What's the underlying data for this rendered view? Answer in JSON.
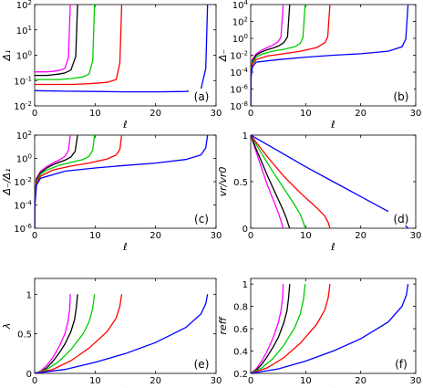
{
  "figure": {
    "colors": {
      "magenta": "#ff00ff",
      "black": "#000000",
      "green": "#00cc00",
      "red": "#ff0000",
      "blue": "#0000ff"
    }
  },
  "chart_data": [
    {
      "panel": "(a)",
      "type": "line",
      "yscale": "log",
      "xlabel": "ℓ",
      "ylabel": "Δ₁",
      "xlim": [
        0,
        30
      ],
      "ylim": [
        0.01,
        100
      ],
      "xticks": [
        "0",
        "10",
        "20",
        "30"
      ],
      "yticks": [
        {
          "v": 0.01,
          "t": "10-2"
        },
        {
          "v": 0.1,
          "t": "10-1"
        },
        {
          "v": 1,
          "t": "100"
        },
        {
          "v": 10,
          "t": "101"
        },
        {
          "v": 100,
          "t": "102"
        }
      ],
      "series": [
        {
          "color": "#ff00ff",
          "x": [
            0,
            1,
            2,
            3,
            4,
            5,
            5.6,
            5.9
          ],
          "y": [
            0.22,
            0.22,
            0.22,
            0.23,
            0.25,
            0.3,
            0.8,
            100
          ]
        },
        {
          "color": "#000000",
          "x": [
            0,
            1,
            2,
            3,
            4,
            5,
            6,
            6.8,
            7.1
          ],
          "y": [
            0.16,
            0.16,
            0.16,
            0.17,
            0.18,
            0.2,
            0.26,
            0.9,
            100
          ]
        },
        {
          "color": "#00cc00",
          "x": [
            0,
            2,
            4,
            6,
            8,
            9,
            9.6,
            9.9
          ],
          "y": [
            0.11,
            0.11,
            0.11,
            0.12,
            0.14,
            0.18,
            0.6,
            100
          ]
        },
        {
          "color": "#ff0000",
          "x": [
            0,
            3,
            6,
            9,
            12,
            13.5,
            14.1,
            14.4
          ],
          "y": [
            0.07,
            0.07,
            0.07,
            0.075,
            0.085,
            0.11,
            0.5,
            100
          ]
        },
        {
          "color": "#0000ff",
          "x": [
            0,
            5,
            10,
            15,
            20,
            25,
            27.5,
            28.3,
            28.6
          ],
          "y": [
            0.04,
            0.038,
            0.037,
            0.036,
            0.036,
            0.037,
            0.045,
            0.3,
            100
          ]
        }
      ]
    },
    {
      "panel": "(b)",
      "type": "line",
      "yscale": "log",
      "xlabel": "ℓ",
      "ylabel": "Δ₋",
      "xlim": [
        0,
        30
      ],
      "ylim": [
        1e-08,
        10000.0
      ],
      "xticks": [
        "0",
        "10",
        "20",
        "30"
      ],
      "yticks": [
        {
          "v": 1e-08,
          "t": "10-8"
        },
        {
          "v": 1e-06,
          "t": "10-6"
        },
        {
          "v": 0.0001,
          "t": "10-4"
        },
        {
          "v": 0.01,
          "t": "10-2"
        },
        {
          "v": 1,
          "t": "100"
        },
        {
          "v": 100,
          "t": "102"
        },
        {
          "v": 10000,
          "t": "104"
        }
      ],
      "series": [
        {
          "color": "#ff00ff",
          "x": [
            0,
            0.05,
            0.3,
            1,
            2,
            3,
            4,
            5,
            5.5,
            5.9
          ],
          "y": [
            1e-08,
            0.0001,
            0.003,
            0.015,
            0.04,
            0.08,
            0.15,
            0.4,
            1.5,
            10000
          ]
        },
        {
          "color": "#000000",
          "x": [
            0,
            0.05,
            0.3,
            1,
            2,
            3,
            4,
            5,
            6,
            6.7,
            7.1
          ],
          "y": [
            1e-08,
            8e-05,
            0.002,
            0.01,
            0.025,
            0.045,
            0.07,
            0.12,
            0.3,
            1.5,
            10000
          ]
        },
        {
          "color": "#00cc00",
          "x": [
            0,
            0.05,
            0.3,
            1,
            2,
            4,
            6,
            8,
            9,
            9.5,
            9.9
          ],
          "y": [
            1e-08,
            5e-05,
            0.0012,
            0.006,
            0.013,
            0.03,
            0.05,
            0.1,
            0.25,
            1.2,
            10000
          ]
        },
        {
          "color": "#ff0000",
          "x": [
            0,
            0.05,
            0.3,
            1,
            3,
            6,
            9,
            12,
            13.5,
            14,
            14.4
          ],
          "y": [
            1e-08,
            3e-05,
            0.0008,
            0.003,
            0.008,
            0.015,
            0.03,
            0.08,
            0.3,
            1.5,
            10000
          ]
        },
        {
          "color": "#0000ff",
          "x": [
            0,
            0.05,
            0.3,
            1,
            5,
            10,
            15,
            20,
            25,
            27.5,
            28.2,
            28.6
          ],
          "y": [
            1e-08,
            2e-05,
            0.0004,
            0.0015,
            0.003,
            0.006,
            0.01,
            0.015,
            0.03,
            0.1,
            0.8,
            10000
          ]
        }
      ]
    },
    {
      "panel": "(c)",
      "type": "line",
      "yscale": "log",
      "xlabel": "ℓ",
      "ylabel": "Δ₋/Δ₁",
      "xlim": [
        0,
        30
      ],
      "ylim": [
        1e-06,
        100
      ],
      "xticks": [
        "0",
        "10",
        "20",
        "30"
      ],
      "yticks": [
        {
          "v": 1e-06,
          "t": "10-6"
        },
        {
          "v": 0.0001,
          "t": "10-4"
        },
        {
          "v": 0.01,
          "t": "10-2"
        },
        {
          "v": 1,
          "t": "100"
        },
        {
          "v": 100,
          "t": "102"
        }
      ],
      "series": [
        {
          "color": "#ff00ff",
          "x": [
            0,
            0.05,
            0.3,
            1,
            2,
            3,
            4,
            5,
            5.6,
            5.9
          ],
          "y": [
            1e-06,
            0.0005,
            0.02,
            0.08,
            0.2,
            0.4,
            0.7,
            1.5,
            5,
            100
          ]
        },
        {
          "color": "#000000",
          "x": [
            0,
            0.05,
            0.3,
            1,
            2,
            3,
            4,
            5,
            6,
            6.7,
            7.1
          ],
          "y": [
            1e-06,
            0.0004,
            0.015,
            0.06,
            0.15,
            0.28,
            0.45,
            0.7,
            1.3,
            4,
            100
          ]
        },
        {
          "color": "#00cc00",
          "x": [
            0,
            0.05,
            0.3,
            1,
            2,
            4,
            6,
            8,
            9,
            9.6,
            9.9
          ],
          "y": [
            1e-06,
            0.0003,
            0.01,
            0.045,
            0.1,
            0.25,
            0.45,
            0.8,
            1.5,
            5,
            100
          ]
        },
        {
          "color": "#ff0000",
          "x": [
            0,
            0.05,
            0.3,
            1,
            3,
            6,
            9,
            12,
            13.5,
            14.1,
            14.4
          ],
          "y": [
            1e-06,
            0.0002,
            0.008,
            0.03,
            0.1,
            0.22,
            0.4,
            0.9,
            2,
            6,
            100
          ]
        },
        {
          "color": "#0000ff",
          "x": [
            0,
            0.05,
            0.3,
            1,
            5,
            10,
            15,
            20,
            25,
            27.5,
            28.3,
            28.6
          ],
          "y": [
            1e-06,
            0.0001,
            0.005,
            0.02,
            0.08,
            0.15,
            0.25,
            0.4,
            0.8,
            2,
            8,
            100
          ]
        }
      ]
    },
    {
      "panel": "(d)",
      "type": "line",
      "yscale": "linear",
      "xlabel": "ℓ",
      "ylabel": "vr/vr0",
      "xlim": [
        0,
        30
      ],
      "ylim": [
        0,
        1
      ],
      "xticks": [
        "0",
        "10",
        "20",
        "30"
      ],
      "yticks": [
        {
          "v": 0,
          "t": "0"
        },
        {
          "v": 0.5,
          "t": "0.5"
        },
        {
          "v": 1,
          "t": "1"
        }
      ],
      "series": [
        {
          "color": "#ff00ff",
          "x": [
            0,
            1,
            2,
            3,
            4,
            5,
            5.5,
            5.8,
            5.9
          ],
          "y": [
            1,
            0.82,
            0.64,
            0.47,
            0.32,
            0.17,
            0.08,
            0.02,
            0
          ]
        },
        {
          "color": "#000000",
          "x": [
            0,
            1,
            2,
            3,
            4,
            5,
            6,
            6.6,
            6.9,
            7.1
          ],
          "y": [
            1,
            0.85,
            0.71,
            0.57,
            0.44,
            0.31,
            0.18,
            0.09,
            0.03,
            0
          ]
        },
        {
          "color": "#00cc00",
          "x": [
            0,
            2,
            4,
            6,
            8,
            9,
            9.6,
            9.9
          ],
          "y": [
            1,
            0.8,
            0.61,
            0.43,
            0.25,
            0.15,
            0.06,
            0
          ]
        },
        {
          "color": "#ff0000",
          "x": [
            0,
            3,
            6,
            9,
            12,
            13.5,
            14.1,
            14.4
          ],
          "y": [
            1,
            0.77,
            0.56,
            0.38,
            0.22,
            0.13,
            0.06,
            0
          ]
        },
        {
          "color": "#0000ff",
          "x": [
            0,
            5,
            10,
            15,
            20,
            25,
            27.5,
            28.3,
            28.6
          ],
          "y": [
            1,
            0.83,
            0.66,
            0.5,
            0.34,
            0.18,
            0.08,
            0.02,
            0
          ]
        }
      ]
    },
    {
      "panel": "(e)",
      "type": "line",
      "yscale": "linear",
      "xlabel": "ℓ",
      "ylabel": "λ",
      "xlim": [
        0,
        30
      ],
      "ylim": [
        0,
        1.2
      ],
      "xticks": [
        "0",
        "10",
        "20",
        "30"
      ],
      "yticks": [
        {
          "v": 0,
          "t": "0"
        },
        {
          "v": 0.5,
          "t": "0.5"
        },
        {
          "v": 1,
          "t": "1"
        }
      ],
      "series": [
        {
          "color": "#ff00ff",
          "x": [
            0,
            1,
            2,
            3,
            4,
            5,
            5.5,
            5.8,
            5.9
          ],
          "y": [
            0,
            0.03,
            0.1,
            0.2,
            0.33,
            0.5,
            0.65,
            0.82,
            1
          ]
        },
        {
          "color": "#000000",
          "x": [
            0,
            1,
            2,
            3,
            4,
            5,
            6,
            6.6,
            6.9,
            7.1
          ],
          "y": [
            0,
            0.02,
            0.07,
            0.15,
            0.25,
            0.37,
            0.53,
            0.68,
            0.84,
            1
          ]
        },
        {
          "color": "#00cc00",
          "x": [
            0,
            2,
            4,
            6,
            8,
            9,
            9.6,
            9.9
          ],
          "y": [
            0,
            0.05,
            0.15,
            0.3,
            0.5,
            0.65,
            0.82,
            1
          ]
        },
        {
          "color": "#ff0000",
          "x": [
            0,
            3,
            6,
            9,
            12,
            13.5,
            14.1,
            14.4
          ],
          "y": [
            0,
            0.05,
            0.16,
            0.32,
            0.53,
            0.7,
            0.85,
            1
          ]
        },
        {
          "color": "#0000ff",
          "x": [
            0,
            5,
            10,
            15,
            20,
            25,
            27.5,
            28.3,
            28.6
          ],
          "y": [
            0,
            0.05,
            0.14,
            0.25,
            0.39,
            0.58,
            0.75,
            0.88,
            1
          ]
        }
      ]
    },
    {
      "panel": "(f)",
      "type": "line",
      "yscale": "linear",
      "xlabel": "ℓ",
      "ylabel": "reff",
      "xlim": [
        0,
        30
      ],
      "ylim": [
        0.2,
        1.05
      ],
      "xticks": [
        "0",
        "10",
        "20",
        "30"
      ],
      "yticks": [
        {
          "v": 0.2,
          "t": "0.2"
        },
        {
          "v": 0.4,
          "t": "0.4"
        },
        {
          "v": 0.6,
          "t": "0.6"
        },
        {
          "v": 0.8,
          "t": "0.8"
        },
        {
          "v": 1,
          "t": "1"
        }
      ],
      "series": [
        {
          "color": "#ff00ff",
          "x": [
            0,
            1,
            2,
            3,
            4,
            5,
            5.5,
            5.8,
            5.9
          ],
          "y": [
            0.2,
            0.24,
            0.31,
            0.4,
            0.51,
            0.65,
            0.76,
            0.88,
            1
          ]
        },
        {
          "color": "#000000",
          "x": [
            0,
            1,
            2,
            3,
            4,
            5,
            6,
            6.6,
            6.9,
            7.1
          ],
          "y": [
            0.2,
            0.23,
            0.28,
            0.35,
            0.43,
            0.52,
            0.65,
            0.76,
            0.88,
            1
          ]
        },
        {
          "color": "#00cc00",
          "x": [
            0,
            2,
            4,
            6,
            8,
            9,
            9.6,
            9.9
          ],
          "y": [
            0.2,
            0.25,
            0.33,
            0.45,
            0.61,
            0.73,
            0.86,
            1
          ]
        },
        {
          "color": "#ff0000",
          "x": [
            0,
            3,
            6,
            9,
            12,
            13.5,
            14.1,
            14.4
          ],
          "y": [
            0.2,
            0.25,
            0.34,
            0.47,
            0.64,
            0.77,
            0.88,
            1
          ]
        },
        {
          "color": "#0000ff",
          "x": [
            0,
            5,
            10,
            15,
            20,
            25,
            27.5,
            28.3,
            28.6
          ],
          "y": [
            0.2,
            0.24,
            0.31,
            0.4,
            0.51,
            0.66,
            0.8,
            0.9,
            1
          ]
        }
      ]
    }
  ]
}
